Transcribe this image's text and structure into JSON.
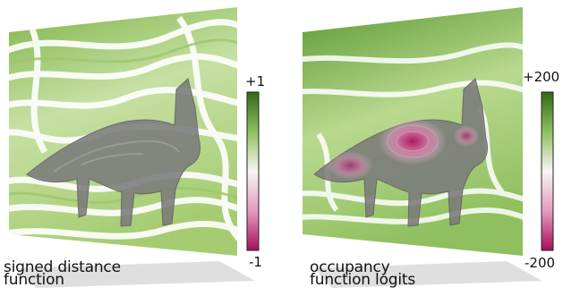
{
  "panels": [
    {
      "caption_line1": "signed distance",
      "caption_line2": "function",
      "colorbar": {
        "max_label": "+1",
        "min_label": "-1"
      }
    },
    {
      "caption_line1": "occupancy",
      "caption_line2": "function logits",
      "colorbar": {
        "max_label": "+200",
        "min_label": "-200"
      }
    }
  ],
  "colors": {
    "positive": "#3b7a1f",
    "neutral": "#f6f6f2",
    "negative": "#b0105f",
    "object": "#7a7a7a"
  }
}
